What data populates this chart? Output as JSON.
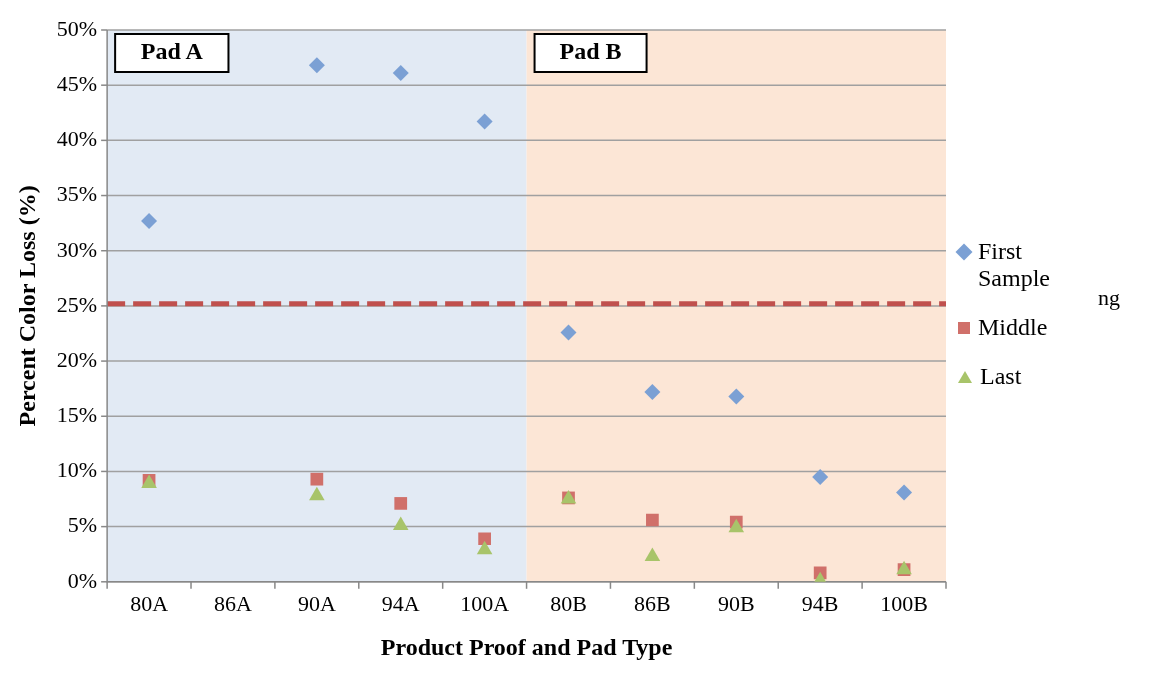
{
  "chart_data": {
    "type": "scatter",
    "xlabel": "Product Proof and Pad Type",
    "ylabel": "Percent Color Loss (%)",
    "categories": [
      "80A",
      "86A",
      "90A",
      "94A",
      "100A",
      "80B",
      "86B",
      "90B",
      "94B",
      "100B"
    ],
    "series": [
      {
        "name": "First Sample",
        "color": "#7ba0d4",
        "marker": "diamond",
        "values": [
          32.7,
          null,
          46.8,
          46.1,
          41.7,
          22.6,
          17.2,
          16.8,
          9.5,
          8.1
        ]
      },
      {
        "name": "Middle",
        "color": "#d0706a",
        "marker": "square",
        "values": [
          9.2,
          null,
          9.3,
          7.1,
          3.9,
          7.6,
          5.6,
          5.4,
          0.8,
          1.1
        ]
      },
      {
        "name": "Last",
        "color": "#a8c46a",
        "marker": "triangle",
        "values": [
          8.9,
          null,
          7.8,
          5.1,
          2.9,
          7.5,
          2.3,
          4.9,
          0.1,
          1.1
        ]
      }
    ],
    "ylim": [
      0,
      50
    ],
    "yticks": [
      {
        "value": 0,
        "label": "0%"
      },
      {
        "value": 5,
        "label": "5%"
      },
      {
        "value": 10,
        "label": "10%"
      },
      {
        "value": 15,
        "label": "15%"
      },
      {
        "value": 20,
        "label": "20%"
      },
      {
        "value": 25,
        "label": "25%"
      },
      {
        "value": 30,
        "label": "30%"
      },
      {
        "value": 35,
        "label": "35%"
      },
      {
        "value": 40,
        "label": "40%"
      },
      {
        "value": 45,
        "label": "45%"
      },
      {
        "value": 50,
        "label": "50%"
      }
    ],
    "bands": [
      {
        "axis": "x",
        "from": "80A",
        "to": "100A",
        "label": "Pad A",
        "color": "#e2eaf4"
      },
      {
        "axis": "x",
        "from": "80B",
        "to": "100B",
        "label": "Pad B",
        "color": "#fce6d6"
      }
    ],
    "ref_lines": [
      {
        "axis": "y",
        "value": 25.2,
        "color": "#c0504d",
        "line_style": "dashed"
      }
    ],
    "annotations": [
      "ng"
    ],
    "grid": "y",
    "legend": "right"
  }
}
